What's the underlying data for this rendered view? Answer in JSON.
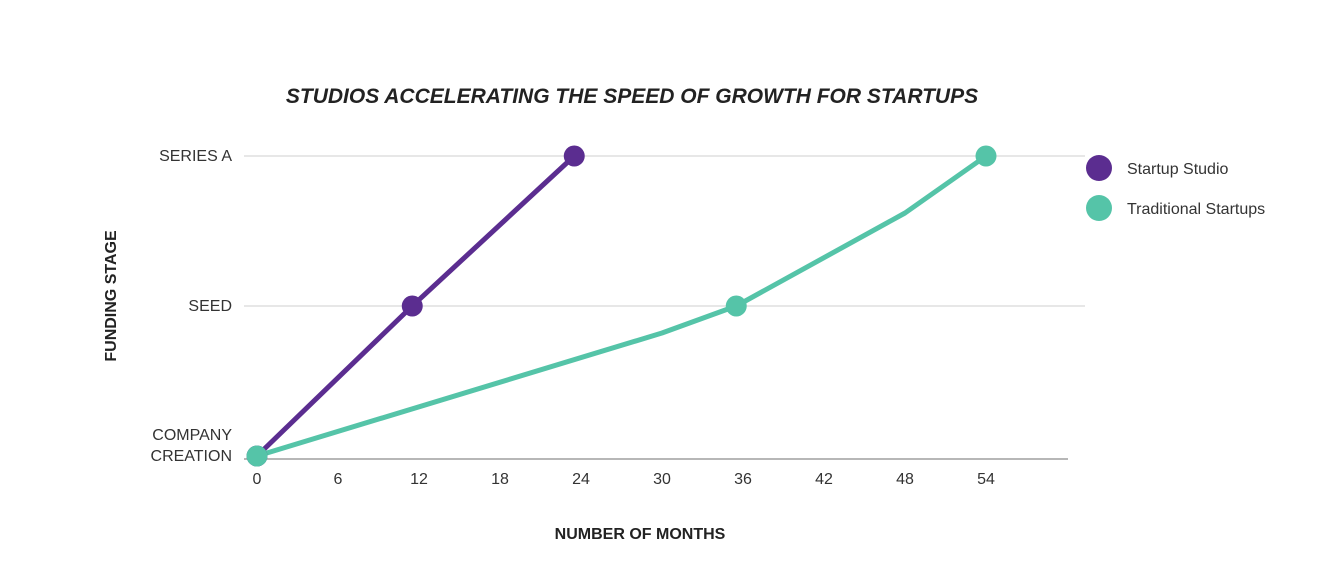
{
  "chart_data": {
    "type": "line",
    "title": "STUDIOS ACCELERATING THE SPEED OF GROWTH FOR STARTUPS",
    "xlabel": "NUMBER OF MONTHS",
    "ylabel": "FUNDING STAGE",
    "x_ticks": [
      0,
      6,
      12,
      18,
      24,
      30,
      36,
      42,
      48,
      54
    ],
    "xlim": [
      0,
      60
    ],
    "y_categories": [
      {
        "label": [
          "COMPANY",
          "CREATION"
        ],
        "level": 0
      },
      {
        "label": [
          "SEED"
        ],
        "level": 1
      },
      {
        "label": [
          "SERIES A"
        ],
        "level": 2
      }
    ],
    "ylim": [
      0,
      2
    ],
    "grid": "horizontal",
    "legend_position": "right",
    "series": [
      {
        "name": "Startup Studio",
        "color": "#5b2d90",
        "points": [
          {
            "x": 0,
            "y": 0,
            "marker": true
          },
          {
            "x": 11.5,
            "y": 1,
            "marker": true
          },
          {
            "x": 23.5,
            "y": 2,
            "marker": true
          }
        ]
      },
      {
        "name": "Traditional Startups",
        "color": "#55c4a8",
        "points": [
          {
            "x": 0,
            "y": 0,
            "marker": true
          },
          {
            "x": 30,
            "y": 0.82,
            "marker": false
          },
          {
            "x": 35.5,
            "y": 1,
            "marker": true
          },
          {
            "x": 48,
            "y": 1.62,
            "marker": false
          },
          {
            "x": 54,
            "y": 2,
            "marker": true
          }
        ]
      }
    ]
  }
}
